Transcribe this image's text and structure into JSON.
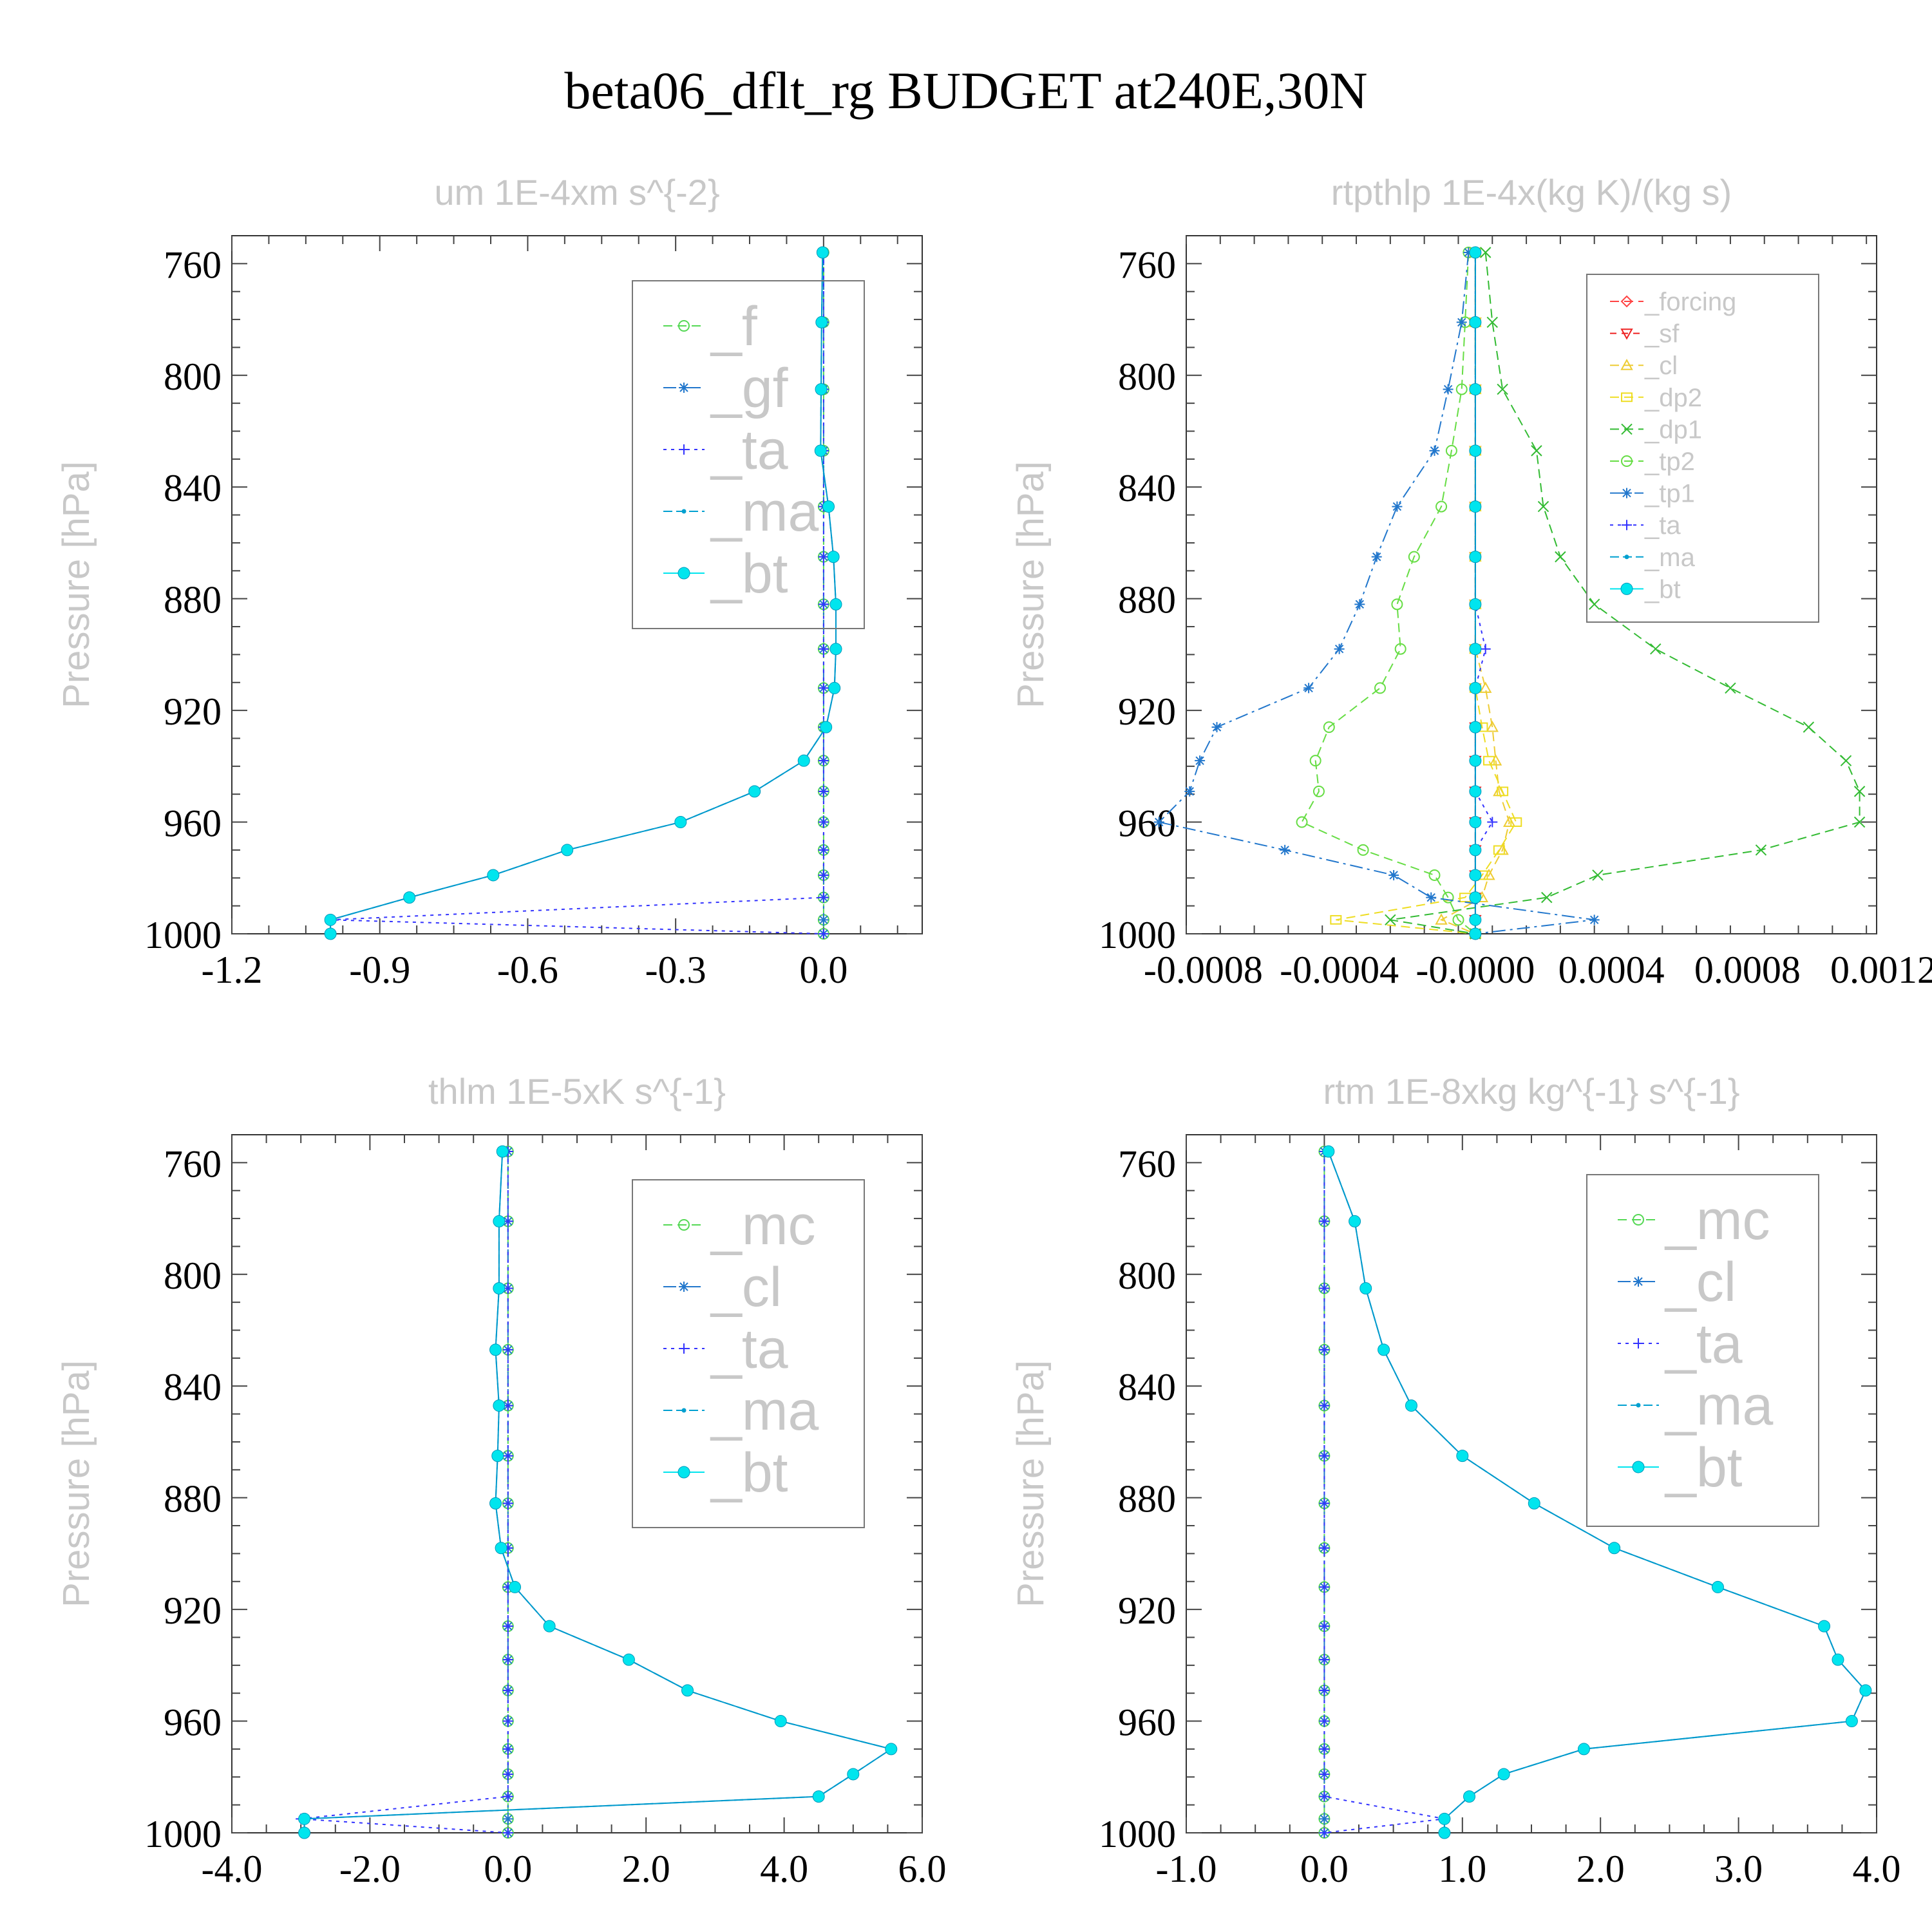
{
  "title": "beta06_dflt_rg  BUDGET at240E,30N",
  "styles": {
    "_f": {
      "color": "#55d855",
      "marker": "circle"
    },
    "_gf": {
      "color": "#2277cc",
      "marker": "star"
    },
    "_ta": {
      "color": "#3333ff",
      "marker": "plus"
    },
    "_ma": {
      "color": "#00a0d0",
      "marker": "dot"
    },
    "_bt": {
      "color": "#00e5ee",
      "marker": "bigdot"
    },
    "_mc": {
      "color": "#55d855",
      "marker": "circle"
    },
    "_cl": {
      "color": "#2277cc",
      "marker": "star"
    },
    "_forcing": {
      "color": "#ff4444",
      "marker": "diamond"
    },
    "_sf": {
      "color": "#ee2222",
      "marker": "tri-down"
    },
    "_cl2": {
      "color": "#eecc33",
      "marker": "tri-up"
    },
    "_dp2": {
      "color": "#eedd22",
      "marker": "square"
    },
    "_dp1": {
      "color": "#33bb33",
      "marker": "x"
    },
    "_tp2": {
      "color": "#66dd44",
      "marker": "circle"
    },
    "_tp1": {
      "color": "#2277cc",
      "marker": "star"
    }
  },
  "chart_data": [
    {
      "type": "line",
      "panel_title": "um  1E-4xm s^{-2}",
      "ylabel": "Pressure [hPa]",
      "xlim": [
        -1.2,
        0.2
      ],
      "ylim": [
        750,
        1000
      ],
      "xticks": [
        -1.2,
        -0.9,
        -0.6,
        -0.3,
        0.0
      ],
      "xtick_labels": [
        "-1.2",
        "-0.9",
        "-0.6",
        "-0.3",
        "0.0"
      ],
      "yticks": [
        760,
        800,
        840,
        880,
        920,
        960,
        1000
      ],
      "ytick_labels": [
        "760",
        "800",
        "840",
        "880",
        "920",
        "960",
        "1000"
      ],
      "legend_position": "top-right",
      "pressure": [
        756,
        781,
        805,
        827,
        847,
        865,
        882,
        898,
        912,
        926,
        938,
        949,
        960,
        970,
        979,
        987,
        995,
        1000
      ],
      "series": [
        {
          "name": "_f",
          "style": "_f",
          "values": [
            0,
            0,
            0,
            0,
            0,
            0,
            0,
            0,
            0,
            0,
            0,
            0,
            0,
            0,
            0,
            0,
            0,
            0
          ]
        },
        {
          "name": "_gf",
          "style": "_gf",
          "values": [
            0,
            0,
            0,
            0,
            0,
            0,
            0,
            0,
            0,
            0,
            0,
            0,
            0,
            0,
            0,
            0,
            0,
            0
          ]
        },
        {
          "name": "_ta",
          "style": "_ta",
          "values": [
            0,
            0,
            0,
            0,
            0,
            0,
            0,
            0,
            0,
            0,
            0,
            0,
            0,
            0,
            0,
            0,
            -1.0,
            0
          ]
        },
        {
          "name": "_ma",
          "style": "_ma",
          "values": [
            -0.002,
            -0.004,
            -0.005,
            -0.006,
            0.01,
            0.02,
            0.025,
            0.025,
            0.022,
            0.005,
            -0.04,
            -0.14,
            -0.29,
            -0.52,
            -0.67,
            -0.84,
            -1.0,
            -1.0
          ]
        },
        {
          "name": "_bt",
          "style": "_bt",
          "values": [
            -0.002,
            -0.004,
            -0.005,
            -0.006,
            0.01,
            0.02,
            0.025,
            0.025,
            0.022,
            0.005,
            -0.04,
            -0.14,
            -0.29,
            -0.52,
            -0.67,
            -0.84,
            -1.0,
            -1.0
          ]
        }
      ]
    },
    {
      "type": "line",
      "panel_title": "rtpthlp  1E-4x(kg K)/(kg s)",
      "ylabel": "Pressure [hPa]",
      "xlim": [
        -0.00085,
        0.00118
      ],
      "ylim": [
        750,
        1000
      ],
      "xticks": [
        -0.0008,
        -0.0004,
        0.0,
        0.0004,
        0.0008,
        0.0012
      ],
      "xtick_labels": [
        "-0.0008",
        "-0.0004",
        "-0.0000",
        "0.0004",
        "0.0008",
        "0.0012"
      ],
      "yticks": [
        760,
        800,
        840,
        880,
        920,
        960,
        1000
      ],
      "ytick_labels": [
        "760",
        "800",
        "840",
        "880",
        "920",
        "960",
        "1000"
      ],
      "legend_position": "top-right",
      "pressure": [
        756,
        781,
        805,
        827,
        847,
        865,
        882,
        898,
        912,
        926,
        938,
        949,
        960,
        970,
        979,
        987,
        995,
        1000
      ],
      "series": [
        {
          "name": "_forcing",
          "style": "_forcing",
          "values": [
            0,
            0,
            0,
            0,
            0,
            0,
            0,
            0,
            0,
            0,
            0,
            0,
            0,
            0,
            0,
            0,
            0,
            0
          ]
        },
        {
          "name": "_sf",
          "style": "_sf",
          "values": [
            0,
            0,
            0,
            0,
            0,
            0,
            0,
            0,
            0,
            0,
            0,
            0,
            0,
            0,
            0,
            0,
            0,
            0
          ]
        },
        {
          "name": "_cl",
          "style": "_cl2",
          "values": [
            0,
            0,
            0,
            0,
            0,
            0,
            0,
            0,
            3e-05,
            5e-05,
            6e-05,
            7e-05,
            0.0001,
            8e-05,
            4e-05,
            2e-05,
            -0.0001,
            0
          ]
        },
        {
          "name": "_dp2",
          "style": "_dp2",
          "values": [
            0,
            0,
            0,
            0,
            0,
            0,
            0,
            0,
            0,
            2e-05,
            4e-05,
            8e-05,
            0.00012,
            7e-05,
            2e-05,
            -3e-05,
            -0.00041,
            0
          ]
        },
        {
          "name": "_dp1",
          "style": "_dp1",
          "values": [
            3e-05,
            5e-05,
            8e-05,
            0.00018,
            0.0002,
            0.00025,
            0.00035,
            0.00053,
            0.00075,
            0.00098,
            0.00109,
            0.00113,
            0.00113,
            0.00084,
            0.00036,
            0.00021,
            -0.00025,
            0
          ]
        },
        {
          "name": "_tp2",
          "style": "_tp2",
          "values": [
            -2e-05,
            -3e-05,
            -4e-05,
            -7e-05,
            -0.0001,
            -0.00018,
            -0.00023,
            -0.00022,
            -0.00028,
            -0.00043,
            -0.00047,
            -0.00046,
            -0.00051,
            -0.00033,
            -0.00012,
            -8e-05,
            -5e-05,
            0
          ]
        },
        {
          "name": "_tp1",
          "style": "_tp1",
          "values": [
            -2e-05,
            -4e-05,
            -8e-05,
            -0.00012,
            -0.00023,
            -0.00029,
            -0.00034,
            -0.0004,
            -0.00049,
            -0.00076,
            -0.00081,
            -0.00084,
            -0.00093,
            -0.00056,
            -0.00024,
            -0.00013,
            0.00035,
            0
          ]
        },
        {
          "name": "_ta",
          "style": "_ta",
          "values": [
            0,
            0,
            0,
            0,
            0,
            0,
            0,
            3e-05,
            0,
            0,
            0,
            0,
            5e-05,
            0,
            0,
            0,
            0,
            0
          ]
        },
        {
          "name": "_ma",
          "style": "_ma",
          "values": [
            0,
            0,
            0,
            0,
            0,
            0,
            0,
            0,
            0,
            0,
            0,
            0,
            0,
            0,
            0,
            0,
            0,
            0
          ]
        },
        {
          "name": "_bt",
          "style": "_bt",
          "values": [
            0,
            0,
            0,
            0,
            0,
            0,
            0,
            0,
            0,
            0,
            0,
            0,
            0,
            0,
            0,
            0,
            0,
            0
          ]
        }
      ]
    },
    {
      "type": "line",
      "panel_title": "thlm  1E-5xK s^{-1}",
      "ylabel": "Pressure [hPa]",
      "xlim": [
        -4.0,
        6.0
      ],
      "ylim": [
        750,
        1000
      ],
      "xticks": [
        -4.0,
        -2.0,
        0.0,
        2.0,
        4.0,
        6.0
      ],
      "xtick_labels": [
        "-4.0",
        "-2.0",
        "0.0",
        "2.0",
        "4.0",
        "6.0"
      ],
      "yticks": [
        760,
        800,
        840,
        880,
        920,
        960,
        1000
      ],
      "ytick_labels": [
        "760",
        "800",
        "840",
        "880",
        "920",
        "960",
        "1000"
      ],
      "legend_position": "top-right",
      "pressure": [
        756,
        781,
        805,
        827,
        847,
        865,
        882,
        898,
        912,
        926,
        938,
        949,
        960,
        970,
        979,
        987,
        995,
        1000
      ],
      "series": [
        {
          "name": "_mc",
          "style": "_mc",
          "values": [
            0,
            0,
            0,
            0,
            0,
            0,
            0,
            0,
            0,
            0,
            0,
            0,
            0,
            0,
            0,
            0,
            0,
            0
          ]
        },
        {
          "name": "_cl",
          "style": "_cl",
          "values": [
            0,
            0,
            0,
            0,
            0,
            0,
            0,
            0,
            0,
            0,
            0,
            0,
            0,
            0,
            0,
            0,
            0,
            0
          ]
        },
        {
          "name": "_ta",
          "style": "_ta",
          "values": [
            0,
            0,
            0,
            0,
            0,
            0,
            0,
            0,
            0,
            0,
            0,
            0,
            0,
            0,
            0,
            0,
            -3.0,
            0
          ]
        },
        {
          "name": "_ma",
          "style": "_ma",
          "values": [
            -0.08,
            -0.13,
            -0.13,
            -0.18,
            -0.13,
            -0.15,
            -0.18,
            -0.1,
            0.1,
            0.6,
            1.75,
            2.6,
            3.95,
            5.55,
            5.0,
            4.5,
            -2.95,
            -2.95
          ]
        },
        {
          "name": "_bt",
          "style": "_bt",
          "values": [
            -0.08,
            -0.13,
            -0.13,
            -0.18,
            -0.13,
            -0.15,
            -0.18,
            -0.1,
            0.1,
            0.6,
            1.75,
            2.6,
            3.95,
            5.55,
            5.0,
            4.5,
            -2.95,
            -2.95
          ]
        }
      ]
    },
    {
      "type": "line",
      "panel_title": "rtm  1E-8xkg kg^{-1} s^{-1}",
      "ylabel": "Pressure [hPa]",
      "xlim": [
        -1.0,
        4.0
      ],
      "ylim": [
        750,
        1000
      ],
      "xticks": [
        -1.0,
        0.0,
        1.0,
        2.0,
        3.0,
        4.0
      ],
      "xtick_labels": [
        "-1.0",
        "0.0",
        "1.0",
        "2.0",
        "3.0",
        "4.0"
      ],
      "yticks": [
        760,
        800,
        840,
        880,
        920,
        960,
        1000
      ],
      "ytick_labels": [
        "760",
        "800",
        "840",
        "880",
        "920",
        "960",
        "1000"
      ],
      "legend_position": "top-right",
      "pressure": [
        756,
        781,
        805,
        827,
        847,
        865,
        882,
        898,
        912,
        926,
        938,
        949,
        960,
        970,
        979,
        987,
        995,
        1000
      ],
      "series": [
        {
          "name": "_mc",
          "style": "_mc",
          "values": [
            0,
            0,
            0,
            0,
            0,
            0,
            0,
            0,
            0,
            0,
            0,
            0,
            0,
            0,
            0,
            0,
            0,
            0
          ]
        },
        {
          "name": "_cl",
          "style": "_cl",
          "values": [
            0,
            0,
            0,
            0,
            0,
            0,
            0,
            0,
            0,
            0,
            0,
            0,
            0,
            0,
            0,
            0,
            0,
            0
          ]
        },
        {
          "name": "_ta",
          "style": "_ta",
          "values": [
            0,
            0,
            0,
            0,
            0,
            0,
            0,
            0,
            0,
            0,
            0,
            0,
            0,
            0,
            0,
            0,
            0.87,
            0
          ]
        },
        {
          "name": "_ma",
          "style": "_ma",
          "values": [
            0.03,
            0.22,
            0.3,
            0.43,
            0.63,
            1.0,
            1.52,
            2.1,
            2.85,
            3.62,
            3.72,
            3.92,
            3.82,
            1.88,
            1.3,
            1.05,
            0.87,
            0.87
          ]
        },
        {
          "name": "_bt",
          "style": "_bt",
          "values": [
            0.03,
            0.22,
            0.3,
            0.43,
            0.63,
            1.0,
            1.52,
            2.1,
            2.85,
            3.62,
            3.72,
            3.92,
            3.82,
            1.88,
            1.3,
            1.05,
            0.87,
            0.87
          ]
        }
      ]
    }
  ]
}
